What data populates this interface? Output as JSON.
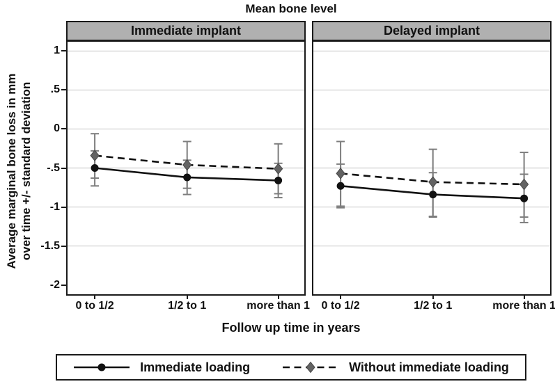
{
  "figure": {
    "title": "Mean bone level",
    "y_axis_label_line1": "Average marginal bone loss in mm",
    "y_axis_label_line2": "over time +/- standard deviation",
    "x_axis_label": "Follow up time in years"
  },
  "colors": {
    "panel_header_bg": "#b0b0b0",
    "panel_border": "#1a1a1a",
    "gridline": "#d8d8d8",
    "error_bar": "#7d7d7d",
    "solid_series": "#111111",
    "dashed_series_line": "#111111",
    "diamond_fill": "#636363",
    "diamond_stroke": "#474747",
    "text": "#111111"
  },
  "chart_data": {
    "type": "line",
    "layout_hints": {
      "panels": "two columns sharing y axis",
      "legend_position": "bottom",
      "grid": "horizontal gridlines on",
      "error_bars": "vertical +/- SD with caps"
    },
    "categories": [
      "0 to 1/2",
      "1/2 to 1",
      "more than 1"
    ],
    "y_ticks": [
      1,
      0.5,
      0,
      -0.5,
      -1,
      -1.5,
      -2
    ],
    "y_tick_labels": [
      "1",
      ".5",
      "0",
      "-.5",
      "-1",
      "-1.5",
      "-2"
    ],
    "ylim": [
      1.12,
      -2.12
    ],
    "series_meta": [
      {
        "name": "Immediate loading",
        "line": "solid",
        "marker": "circle",
        "color": "#111111"
      },
      {
        "name": "Without immediate loading",
        "line": "dashed",
        "marker": "diamond",
        "color": "#636363"
      }
    ],
    "panels": [
      {
        "title": "Immediate implant",
        "series": [
          {
            "name": "Immediate loading",
            "values": [
              -0.5,
              -0.62,
              -0.66
            ],
            "err_high": [
              -0.28,
              -0.4,
              -0.44
            ],
            "err_low": [
              -0.73,
              -0.84,
              -0.88
            ]
          },
          {
            "name": "Without immediate loading",
            "values": [
              -0.34,
              -0.46,
              -0.51
            ],
            "err_high": [
              -0.06,
              -0.16,
              -0.19
            ],
            "err_low": [
              -0.63,
              -0.76,
              -0.83
            ]
          }
        ]
      },
      {
        "title": "Delayed implant",
        "series": [
          {
            "name": "Immediate loading",
            "values": [
              -0.73,
              -0.84,
              -0.89
            ],
            "err_high": [
              -0.45,
              -0.56,
              -0.58
            ],
            "err_low": [
              -1.01,
              -1.13,
              -1.2
            ]
          },
          {
            "name": "Without immediate loading",
            "values": [
              -0.57,
              -0.68,
              -0.71
            ],
            "err_high": [
              -0.16,
              -0.26,
              -0.3
            ],
            "err_low": [
              -0.99,
              -1.12,
              -1.13
            ]
          }
        ]
      }
    ]
  },
  "legend": {
    "items": [
      {
        "label": "Immediate loading",
        "sample": "solid-line-circle-marker"
      },
      {
        "label": "Without immediate loading",
        "sample": "dashed-line-diamond-marker"
      }
    ]
  }
}
